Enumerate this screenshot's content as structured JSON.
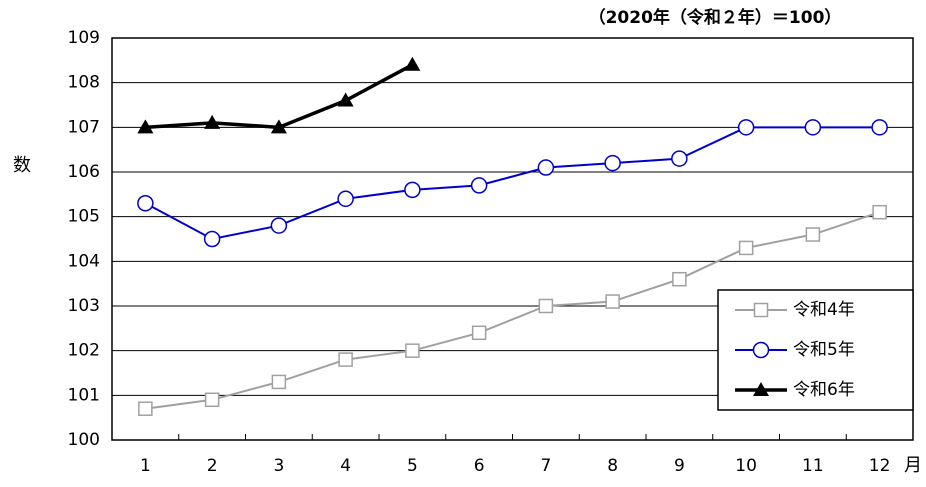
{
  "chart_data": {
    "type": "line",
    "title": "（2020年（令和２年）＝100）",
    "y_label": "指数",
    "x_label": "月",
    "categories": [
      "1",
      "2",
      "3",
      "4",
      "5",
      "6",
      "7",
      "8",
      "9",
      "10",
      "11",
      "12"
    ],
    "series": [
      {
        "name": "令和4年",
        "color": "#a0a0a0",
        "marker": "square",
        "values": [
          100.7,
          100.9,
          101.3,
          101.8,
          102.0,
          102.4,
          103.0,
          103.1,
          103.6,
          104.3,
          104.6,
          105.1
        ]
      },
      {
        "name": "令和5年",
        "color": "#0000cc",
        "marker": "circle",
        "values": [
          105.3,
          104.5,
          104.8,
          105.4,
          105.6,
          105.7,
          106.1,
          106.2,
          106.3,
          107.0,
          107.0,
          107.0
        ]
      },
      {
        "name": "令和6年",
        "color": "#000000",
        "marker": "triangle",
        "values": [
          107.0,
          107.1,
          107.0,
          107.6,
          108.4,
          null,
          null,
          null,
          null,
          null,
          null,
          null
        ]
      }
    ],
    "ylim": [
      100,
      109
    ],
    "yticks": [
      100,
      101,
      102,
      103,
      104,
      105,
      106,
      107,
      108,
      109
    ],
    "grid": true,
    "legend": "lower right"
  }
}
